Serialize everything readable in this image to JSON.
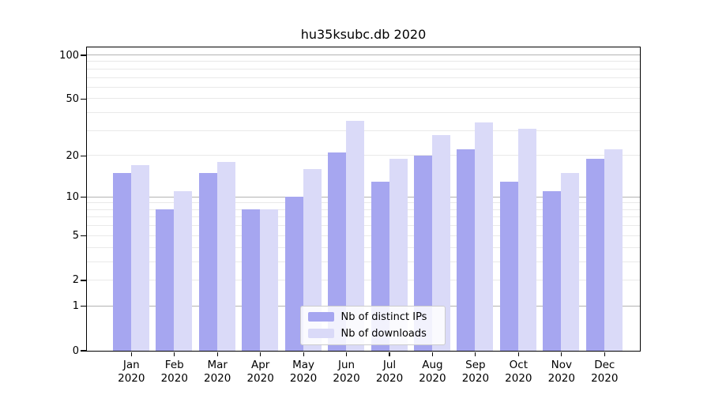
{
  "chart_data": {
    "type": "bar",
    "title": "hu35ksubc.db 2020",
    "categories": [
      "Jan",
      "Feb",
      "Mar",
      "Apr",
      "May",
      "Jun",
      "Jul",
      "Aug",
      "Sep",
      "Oct",
      "Nov",
      "Dec"
    ],
    "category_year": "2020",
    "series": [
      {
        "name": "Nb of distinct IPs",
        "color": "#a6a6f0",
        "values": [
          15,
          8,
          15,
          8,
          10,
          21,
          13,
          20,
          22,
          13,
          11,
          19
        ]
      },
      {
        "name": "Nb of downloads",
        "color": "#dadaf8",
        "values": [
          17,
          11,
          18,
          8,
          16,
          35,
          19,
          28,
          34,
          31,
          15,
          22
        ]
      }
    ],
    "y_axis": {
      "scale": "log1p",
      "tick_values": [
        0,
        1,
        2,
        5,
        10,
        20,
        50,
        100
      ],
      "tick_labels": [
        "0",
        "1",
        "2",
        "5",
        "10",
        "20",
        "50",
        "100"
      ],
      "major_gridlines": [
        1,
        10,
        100
      ],
      "minor_gridlines": [
        2,
        3,
        4,
        5,
        6,
        7,
        8,
        9,
        20,
        30,
        40,
        50,
        60,
        70,
        80,
        90
      ],
      "top_value": 113
    },
    "legend": {
      "position": "lower-center"
    },
    "colors": {
      "major_grid": "#b3b3b3",
      "minor_grid": "#e9e9e9",
      "spine": "#000000",
      "text": "#000000",
      "legend_border": "#cccccc"
    }
  }
}
